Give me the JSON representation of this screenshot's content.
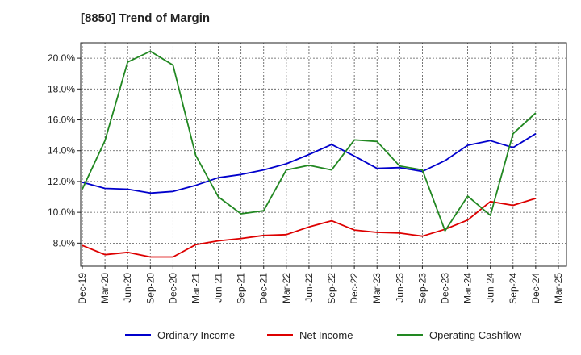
{
  "chart_data": {
    "type": "line",
    "title": "[8850]  Trend of Margin",
    "xlabel": "",
    "ylabel": "",
    "categories": [
      "Dec-19",
      "Mar-20",
      "Jun-20",
      "Sep-20",
      "Dec-20",
      "Mar-21",
      "Jun-21",
      "Sep-21",
      "Dec-21",
      "Mar-22",
      "Jun-22",
      "Sep-22",
      "Dec-22",
      "Mar-23",
      "Jun-23",
      "Sep-23",
      "Dec-23",
      "Mar-24",
      "Jun-24",
      "Sep-24",
      "Dec-24",
      "Mar-25"
    ],
    "ylim": [
      6.5,
      21.0
    ],
    "yticks": [
      8.0,
      10.0,
      12.0,
      14.0,
      16.0,
      18.0,
      20.0
    ],
    "ytick_labels": [
      "8.0%",
      "10.0%",
      "12.0%",
      "14.0%",
      "16.0%",
      "18.0%",
      "20.0%"
    ],
    "grid": true,
    "legend_position": "bottom",
    "series": [
      {
        "name": "Ordinary Income",
        "color": "#0000cc",
        "values": [
          11.95,
          11.55,
          11.5,
          11.25,
          11.35,
          11.75,
          12.25,
          12.45,
          12.75,
          13.15,
          13.75,
          14.4,
          13.65,
          12.85,
          12.9,
          12.65,
          13.35,
          14.35,
          14.65,
          14.2,
          15.1,
          null
        ]
      },
      {
        "name": "Net Income",
        "color": "#dd0000",
        "values": [
          7.85,
          7.25,
          7.4,
          7.1,
          7.1,
          7.9,
          8.15,
          8.3,
          8.5,
          8.55,
          9.05,
          9.45,
          8.85,
          8.7,
          8.65,
          8.45,
          8.9,
          9.5,
          10.7,
          10.45,
          10.9,
          null
        ]
      },
      {
        "name": "Operating Cashflow",
        "color": "#228822",
        "values": [
          11.5,
          14.65,
          19.75,
          20.45,
          19.55,
          13.7,
          11.0,
          9.9,
          10.1,
          12.75,
          13.05,
          12.75,
          14.7,
          14.6,
          13.0,
          12.75,
          8.8,
          11.05,
          9.8,
          15.1,
          16.45,
          null
        ]
      }
    ]
  }
}
